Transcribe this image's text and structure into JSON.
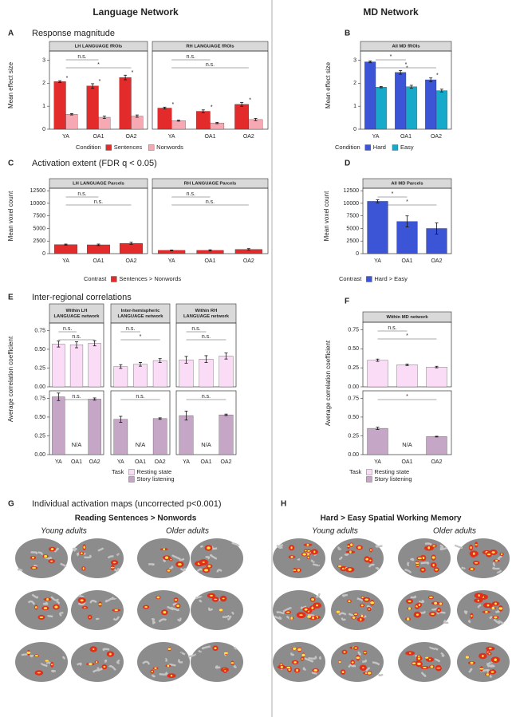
{
  "columns": [
    "Language Network",
    "MD Network"
  ],
  "chart_data": [
    {
      "type": "bar",
      "letter": "A",
      "title": "Response magnitude",
      "y_label": "Mean effect size",
      "layout": "dodge",
      "legend_title": "Condition",
      "legend_direction": "horizontal",
      "series": [
        {
          "name": "Sentences",
          "color": "#e32b2b"
        },
        {
          "name": "Nonwords",
          "color": "#f7a9b3"
        }
      ],
      "categories": [
        "YA",
        "OA1",
        "OA2"
      ],
      "ylim": [
        0,
        3.4
      ],
      "yticks": [
        0,
        1,
        2,
        3
      ],
      "facets": [
        {
          "strip": [
            "LH LANGUAGE fROIs"
          ],
          "brackets": [
            {
              "label": "n.s.",
              "between": [
                "YA",
                "OA1"
              ]
            },
            {
              "label": "*",
              "between": [
                "YA",
                "OA2"
              ]
            }
          ],
          "data": [
            {
              "values": [
                2.07,
                1.88,
                2.25
              ],
              "errors": [
                0.04,
                0.1,
                0.1
              ],
              "stars": [
                "*",
                "*",
                "*"
              ]
            },
            {
              "values": [
                0.65,
                0.52,
                0.57
              ],
              "errors": [
                0.03,
                0.05,
                0.05
              ]
            }
          ]
        },
        {
          "strip": [
            "RH LANGUAGE fROIs"
          ],
          "brackets": [
            {
              "label": "n.s.",
              "between": [
                "YA",
                "OA1"
              ]
            },
            {
              "label": "n.s.",
              "between": [
                "YA",
                "OA2"
              ]
            }
          ],
          "data": [
            {
              "values": [
                0.92,
                0.78,
                1.08
              ],
              "errors": [
                0.04,
                0.06,
                0.08
              ],
              "stars": [
                "*",
                "*",
                "*"
              ]
            },
            {
              "values": [
                0.37,
                0.27,
                0.42
              ],
              "errors": [
                0.02,
                0.03,
                0.05
              ]
            }
          ]
        }
      ]
    },
    {
      "type": "bar",
      "letter": "B",
      "y_label": "Mean effect size",
      "layout": "dodge",
      "legend_title": "Condition",
      "legend_direction": "horizontal",
      "series": [
        {
          "name": "Hard",
          "color": "#3b55d6"
        },
        {
          "name": "Easy",
          "color": "#17a9c9"
        }
      ],
      "categories": [
        "YA",
        "OA1",
        "OA2"
      ],
      "ylim": [
        0,
        3.4
      ],
      "yticks": [
        0,
        1,
        2,
        3
      ],
      "facets": [
        {
          "strip": [
            "All MD fROIs"
          ],
          "brackets": [
            {
              "label": "*",
              "between": [
                "YA",
                "OA1"
              ]
            },
            {
              "label": "*",
              "between": [
                "YA",
                "OA2"
              ]
            }
          ],
          "data": [
            {
              "values": [
                2.93,
                2.47,
                2.15
              ],
              "errors": [
                0.04,
                0.08,
                0.08
              ],
              "stars": [
                null,
                "*",
                "*"
              ]
            },
            {
              "values": [
                1.83,
                1.85,
                1.68
              ],
              "errors": [
                0.03,
                0.06,
                0.06
              ]
            }
          ]
        }
      ]
    },
    {
      "type": "bar",
      "letter": "C",
      "title": "Activation extent (FDR q < 0.05)",
      "y_label": "Mean voxel count",
      "layout": "single",
      "legend_title": "Contrast",
      "legend_direction": "horizontal",
      "series": [
        {
          "name": "Sentences > Nonwords",
          "color": "#e32b2b"
        }
      ],
      "categories": [
        "YA",
        "OA1",
        "OA2"
      ],
      "ylim": [
        0,
        13000
      ],
      "yticks": [
        0,
        2500,
        5000,
        7500,
        10000,
        12500
      ],
      "facets": [
        {
          "strip": [
            "LH LANGUAGE Parcels"
          ],
          "brackets": [
            {
              "label": "n.s.",
              "between": [
                "YA",
                "OA1"
              ]
            },
            {
              "label": "n.s.",
              "between": [
                "YA",
                "OA2"
              ]
            }
          ],
          "data": [
            {
              "values": [
                1800,
                1750,
                2050
              ],
              "errors": [
                100,
                150,
                200
              ]
            }
          ]
        },
        {
          "strip": [
            "RH LANGUAGE Parcels"
          ],
          "brackets": [
            {
              "label": "n.s.",
              "between": [
                "YA",
                "OA1"
              ]
            },
            {
              "label": "n.s.",
              "between": [
                "YA",
                "OA2"
              ]
            }
          ],
          "data": [
            {
              "values": [
                650,
                650,
                850
              ],
              "errors": [
                80,
                120,
                150
              ]
            }
          ]
        }
      ]
    },
    {
      "type": "bar",
      "letter": "D",
      "y_label": "Mean voxel count",
      "layout": "single",
      "legend_title": "Contrast",
      "legend_direction": "horizontal",
      "series": [
        {
          "name": "Hard > Easy",
          "color": "#3b55d6"
        }
      ],
      "categories": [
        "YA",
        "OA1",
        "OA2"
      ],
      "ylim": [
        0,
        13000
      ],
      "yticks": [
        0,
        2500,
        5000,
        7500,
        10000,
        12500
      ],
      "facets": [
        {
          "strip": [
            "All MD Parcels"
          ],
          "brackets": [
            {
              "label": "*",
              "between": [
                "YA",
                "OA1"
              ]
            },
            {
              "label": "*",
              "between": [
                "YA",
                "OA2"
              ]
            }
          ],
          "data": [
            {
              "values": [
                10400,
                6400,
                5000
              ],
              "errors": [
                300,
                1100,
                1100
              ]
            }
          ]
        }
      ]
    },
    {
      "type": "bar",
      "letter": "E",
      "title": "Inter-regional correlations",
      "y_label": "Average correlation coefficient",
      "layout": "rows",
      "legend_title": "Task",
      "legend_direction": "vertical",
      "series": [
        {
          "name": "Resting state",
          "color": "#fbdcf6"
        },
        {
          "name": "Story listening",
          "color": "#c6a6c6"
        }
      ],
      "categories": [
        "YA",
        "OA1",
        "OA2"
      ],
      "ylim": [
        0,
        0.85
      ],
      "yticks": [
        {
          "value": 0,
          "label": "0.00"
        },
        {
          "value": 0.25,
          "label": "0.25"
        },
        {
          "value": 0.5,
          "label": "0.50"
        },
        {
          "value": 0.75,
          "label": "0.75"
        }
      ],
      "facets": [
        {
          "strip": [
            "Within LH",
            "LANGUAGE network"
          ],
          "data": [
            {
              "values": [
                0.57,
                0.56,
                0.58
              ],
              "errors": [
                0.04,
                0.04,
                0.035
              ],
              "brackets": [
                {
                  "label": "n.s.",
                  "between": [
                    "YA",
                    "OA1"
                  ]
                },
                {
                  "label": "n.s.",
                  "between": [
                    "YA",
                    "OA2"
                  ]
                }
              ]
            },
            {
              "values": [
                0.77,
                null,
                0.74
              ],
              "errors": [
                0.05,
                null,
                0.015
              ],
              "value_labels": [
                null,
                "N/A",
                null
              ],
              "brackets": [
                {
                  "label": "n.s.",
                  "between": [
                    "YA",
                    "OA2"
                  ]
                }
              ]
            }
          ]
        },
        {
          "strip": [
            "Inter-hemispheric",
            "LANGUAGE network"
          ],
          "data": [
            {
              "values": [
                0.27,
                0.3,
                0.35
              ],
              "errors": [
                0.025,
                0.025,
                0.025
              ],
              "brackets": [
                {
                  "label": "n.s.",
                  "between": [
                    "YA",
                    "OA1"
                  ]
                },
                {
                  "label": "*",
                  "between": [
                    "YA",
                    "OA2"
                  ]
                }
              ]
            },
            {
              "values": [
                0.47,
                null,
                0.48
              ],
              "errors": [
                0.04,
                null,
                0.01
              ],
              "value_labels": [
                null,
                "N/A",
                null
              ],
              "brackets": [
                {
                  "label": "n.s.",
                  "between": [
                    "YA",
                    "OA2"
                  ]
                }
              ]
            }
          ]
        },
        {
          "strip": [
            "Within RH",
            "LANGUAGE network"
          ],
          "data": [
            {
              "values": [
                0.36,
                0.37,
                0.41
              ],
              "errors": [
                0.045,
                0.045,
                0.04
              ],
              "brackets": [
                {
                  "label": "n.s.",
                  "between": [
                    "YA",
                    "OA1"
                  ]
                },
                {
                  "label": "n.s.",
                  "between": [
                    "YA",
                    "OA2"
                  ]
                }
              ]
            },
            {
              "values": [
                0.52,
                null,
                0.53
              ],
              "errors": [
                0.06,
                null,
                0.01
              ],
              "value_labels": [
                null,
                "N/A",
                null
              ],
              "brackets": [
                {
                  "label": "n.s.",
                  "between": [
                    "YA",
                    "OA2"
                  ]
                }
              ]
            }
          ]
        }
      ]
    },
    {
      "type": "bar",
      "letter": "F",
      "y_label": "Average correlation coefficient",
      "layout": "rows",
      "legend_title": "Task",
      "legend_direction": "vertical",
      "series": [
        {
          "name": "Resting state",
          "color": "#fbdcf6"
        },
        {
          "name": "Story listening",
          "color": "#c6a6c6"
        }
      ],
      "categories": [
        "YA",
        "OA1",
        "OA2"
      ],
      "ylim": [
        0,
        0.85
      ],
      "yticks": [
        {
          "value": 0,
          "label": "0.00"
        },
        {
          "value": 0.25,
          "label": "0.25"
        },
        {
          "value": 0.5,
          "label": "0.50"
        },
        {
          "value": 0.75,
          "label": "0.75"
        }
      ],
      "facets": [
        {
          "strip": [
            "Within MD network"
          ],
          "data": [
            {
              "values": [
                0.35,
                0.29,
                0.26
              ],
              "errors": [
                0.015,
                0.01,
                0.01
              ],
              "brackets": [
                {
                  "label": "n.s.",
                  "between": [
                    "YA",
                    "OA1"
                  ]
                },
                {
                  "label": "*",
                  "between": [
                    "YA",
                    "OA2"
                  ]
                }
              ]
            },
            {
              "values": [
                0.35,
                null,
                0.24
              ],
              "errors": [
                0.015,
                null,
                0.005
              ],
              "value_labels": [
                null,
                "N/A",
                null
              ],
              "brackets": [
                {
                  "label": "*",
                  "between": [
                    "YA",
                    "OA2"
                  ]
                }
              ]
            }
          ]
        }
      ]
    }
  ],
  "brain_maps": [
    {
      "letter": "G",
      "title": "Individual activation maps (uncorrected p<0.001)",
      "subtitle": "Reading Sentences > Nonwords",
      "groups": [
        "Young adults",
        "Older adults"
      ]
    },
    {
      "letter": "H",
      "subtitle": "Hard > Easy Spatial Working Memory",
      "groups": [
        "Young adults",
        "Older adults"
      ]
    }
  ]
}
